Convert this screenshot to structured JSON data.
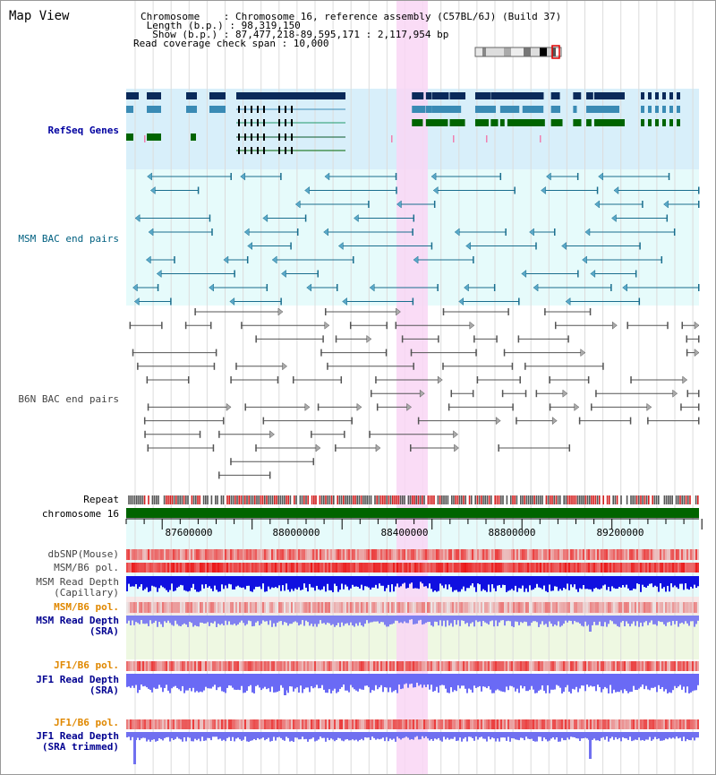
{
  "view_title": "Map View",
  "header": {
    "chromosome_line": "Chromosome    : Chromosome 16, reference assembly (C57BL/6J) (Build 37)",
    "length_line": " Length (b.p.) : 98,319,150",
    "show_line": "  Show (b.p.) : 87,477,218-89,595,171 : 2,117,954 bp",
    "coverage_line": "Read coverage check span : 10,000"
  },
  "tracks": {
    "refseq": "RefSeq Genes",
    "msm_bac": "MSM BAC end pairs",
    "b6n_bac": "B6N BAC end pairs",
    "repeat": "Repeat",
    "chromosome": "chromosome 16",
    "dbsnp": "dbSNP(Mouse)",
    "msm_b6_pol": "MSM/B6 pol.",
    "msm_depth_cap_1": "MSM Read Depth",
    "msm_depth_cap_2": "(Capillary)",
    "msm_b6_pol2": "MSM/B6 pol.",
    "msm_depth_sra_1": "MSM Read Depth",
    "msm_depth_sra_2": "(SRA)",
    "jf1_pol": "JF1/B6 pol.",
    "jf1_depth_sra_1": "JF1 Read Depth",
    "jf1_depth_sra_2": "(SRA)",
    "jf1_pol2": "JF1/B6 pol.",
    "jf1_depth_trim_1": "JF1 Read Depth",
    "jf1_depth_trim_2": "(SRA trimmed)"
  },
  "axis_ticks": [
    "87600000",
    "88000000",
    "88400000",
    "88800000",
    "89200000"
  ],
  "colors": {
    "refseq_bg": "#d8effa",
    "msm_bg": "#e6fbfb",
    "highlight": "#f9d6f4",
    "msm_label": "#006080",
    "refseq_label": "#0000a0",
    "depth_label": "#000090",
    "jf1_label": "#e08800",
    "chromosome_bar": "#006400"
  }
}
